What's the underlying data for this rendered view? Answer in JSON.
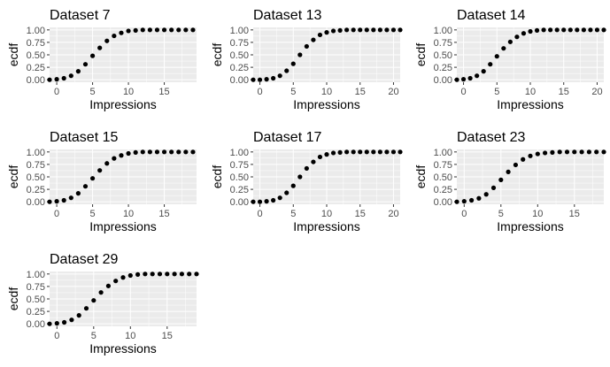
{
  "figure": {
    "background": "#ffffff",
    "panel_background": "#ebebeb",
    "grid_color": "#ffffff",
    "point_color": "#000000"
  },
  "chart_data": [
    {
      "type": "scatter",
      "title": "Dataset 7",
      "xlabel": "Impressions",
      "ylabel": "ecdf",
      "xlim": [
        -1,
        19.5
      ],
      "ylim": [
        -0.05,
        1.05
      ],
      "xticks": [
        0,
        5,
        10,
        15
      ],
      "yticks": [
        "0.00",
        "0.25",
        "0.50",
        "0.75",
        "1.00"
      ],
      "x": [
        -1,
        0,
        1,
        2,
        3,
        4,
        5,
        6,
        7,
        8,
        9,
        10,
        11,
        12,
        13,
        14,
        15,
        16,
        17,
        18,
        19
      ],
      "y": [
        0.0,
        0.01,
        0.03,
        0.08,
        0.17,
        0.31,
        0.48,
        0.64,
        0.78,
        0.88,
        0.94,
        0.98,
        0.99,
        1.0,
        1.0,
        1.0,
        1.0,
        1.0,
        1.0,
        1.0,
        1.0
      ]
    },
    {
      "type": "scatter",
      "title": "Dataset 13",
      "xlabel": "Impressions",
      "ylabel": "ecdf",
      "xlim": [
        -1,
        21
      ],
      "ylim": [
        -0.05,
        1.05
      ],
      "xticks": [
        0,
        5,
        10,
        15,
        20
      ],
      "yticks": [
        "0.00",
        "0.25",
        "0.50",
        "0.75",
        "1.00"
      ],
      "x": [
        -1,
        0,
        1,
        2,
        3,
        4,
        5,
        6,
        7,
        8,
        9,
        10,
        11,
        12,
        13,
        14,
        15,
        16,
        17,
        18,
        19,
        20,
        21
      ],
      "y": [
        0.0,
        0.0,
        0.01,
        0.03,
        0.08,
        0.18,
        0.32,
        0.5,
        0.67,
        0.8,
        0.9,
        0.95,
        0.98,
        0.99,
        1.0,
        1.0,
        1.0,
        1.0,
        1.0,
        1.0,
        1.0,
        1.0,
        1.0
      ]
    },
    {
      "type": "scatter",
      "title": "Dataset 14",
      "xlabel": "Impressions",
      "ylabel": "ecdf",
      "xlim": [
        -1,
        21
      ],
      "ylim": [
        -0.05,
        1.05
      ],
      "xticks": [
        0,
        5,
        10,
        15,
        20
      ],
      "yticks": [
        "0.00",
        "0.25",
        "0.50",
        "0.75",
        "1.00"
      ],
      "x": [
        -1,
        0,
        1,
        2,
        3,
        4,
        5,
        6,
        7,
        8,
        9,
        10,
        11,
        12,
        13,
        14,
        15,
        16,
        17,
        18,
        19,
        20,
        21
      ],
      "y": [
        0.0,
        0.01,
        0.03,
        0.08,
        0.17,
        0.31,
        0.47,
        0.63,
        0.76,
        0.86,
        0.93,
        0.97,
        0.99,
        1.0,
        1.0,
        1.0,
        1.0,
        1.0,
        1.0,
        1.0,
        1.0,
        1.0,
        1.0
      ]
    },
    {
      "type": "scatter",
      "title": "Dataset 15",
      "xlabel": "Impressions",
      "ylabel": "ecdf",
      "xlim": [
        -1,
        19.5
      ],
      "ylim": [
        -0.05,
        1.05
      ],
      "xticks": [
        0,
        5,
        10,
        15
      ],
      "yticks": [
        "0.00",
        "0.25",
        "0.50",
        "0.75",
        "1.00"
      ],
      "x": [
        -1,
        0,
        1,
        2,
        3,
        4,
        5,
        6,
        7,
        8,
        9,
        10,
        11,
        12,
        13,
        14,
        15,
        16,
        17,
        18,
        19
      ],
      "y": [
        0.0,
        0.01,
        0.03,
        0.08,
        0.17,
        0.31,
        0.47,
        0.63,
        0.77,
        0.87,
        0.93,
        0.97,
        0.99,
        1.0,
        1.0,
        1.0,
        1.0,
        1.0,
        1.0,
        1.0,
        1.0
      ]
    },
    {
      "type": "scatter",
      "title": "Dataset 17",
      "xlabel": "Impressions",
      "ylabel": "ecdf",
      "xlim": [
        -1,
        21
      ],
      "ylim": [
        -0.05,
        1.05
      ],
      "xticks": [
        0,
        5,
        10,
        15,
        20
      ],
      "yticks": [
        "0.00",
        "0.25",
        "0.50",
        "0.75",
        "1.00"
      ],
      "x": [
        -1,
        0,
        1,
        2,
        3,
        4,
        5,
        6,
        7,
        8,
        9,
        10,
        11,
        12,
        13,
        14,
        15,
        16,
        17,
        18,
        19,
        20,
        21
      ],
      "y": [
        0.0,
        0.0,
        0.01,
        0.03,
        0.08,
        0.18,
        0.32,
        0.5,
        0.67,
        0.8,
        0.9,
        0.95,
        0.98,
        0.99,
        1.0,
        1.0,
        1.0,
        1.0,
        1.0,
        1.0,
        1.0,
        1.0,
        1.0
      ]
    },
    {
      "type": "scatter",
      "title": "Dataset 23",
      "xlabel": "Impressions",
      "ylabel": "ecdf",
      "xlim": [
        -1,
        19
      ],
      "ylim": [
        -0.05,
        1.05
      ],
      "xticks": [
        0,
        5,
        10,
        15
      ],
      "yticks": [
        "0.00",
        "0.25",
        "0.50",
        "0.75",
        "1.00"
      ],
      "x": [
        -1,
        0,
        1,
        2,
        3,
        4,
        5,
        6,
        7,
        8,
        9,
        10,
        11,
        12,
        13,
        14,
        15,
        16,
        17,
        18,
        19
      ],
      "y": [
        0.0,
        0.01,
        0.03,
        0.07,
        0.15,
        0.28,
        0.44,
        0.6,
        0.74,
        0.85,
        0.92,
        0.96,
        0.98,
        0.99,
        1.0,
        1.0,
        1.0,
        1.0,
        1.0,
        1.0,
        1.0
      ]
    },
    {
      "type": "scatter",
      "title": "Dataset 29",
      "xlabel": "Impressions",
      "ylabel": "ecdf",
      "xlim": [
        -1,
        19
      ],
      "ylim": [
        -0.05,
        1.05
      ],
      "xticks": [
        0,
        5,
        10,
        15
      ],
      "yticks": [
        "0.00",
        "0.25",
        "0.50",
        "0.75",
        "1.00"
      ],
      "x": [
        -1,
        0,
        1,
        2,
        3,
        4,
        5,
        6,
        7,
        8,
        9,
        10,
        11,
        12,
        13,
        14,
        15,
        16,
        17,
        18,
        19
      ],
      "y": [
        0.0,
        0.01,
        0.03,
        0.08,
        0.17,
        0.31,
        0.47,
        0.63,
        0.76,
        0.86,
        0.93,
        0.97,
        0.99,
        1.0,
        1.0,
        1.0,
        1.0,
        1.0,
        1.0,
        1.0,
        1.0
      ]
    }
  ]
}
